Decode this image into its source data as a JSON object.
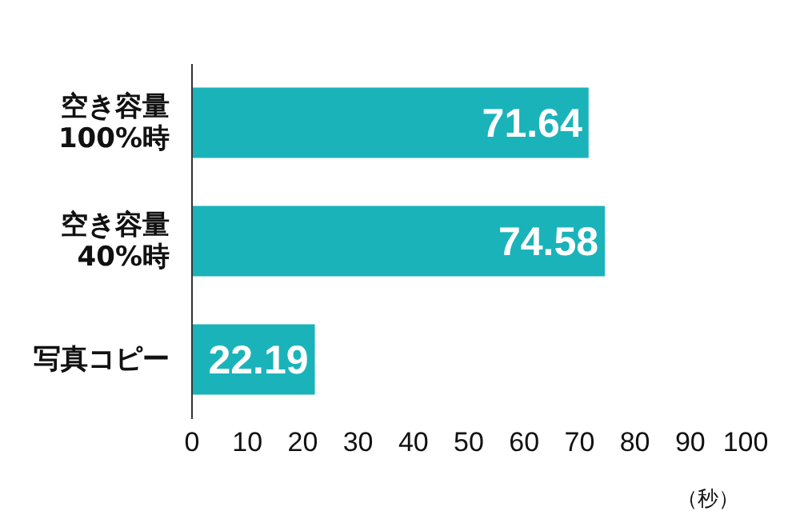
{
  "chart_data": {
    "type": "bar",
    "orientation": "horizontal",
    "categories": [
      "空き容量\n100%時",
      "空き容量\n40%時",
      "写真コピー"
    ],
    "values": [
      71.64,
      74.58,
      22.19
    ],
    "color": "#1bb3ba",
    "data_labels": true,
    "xlabel": "（秒）",
    "xlim": [
      0,
      100
    ],
    "xticks": [
      0,
      10,
      20,
      30,
      40,
      50,
      60,
      70,
      80,
      90,
      100
    ],
    "grid": false
  }
}
